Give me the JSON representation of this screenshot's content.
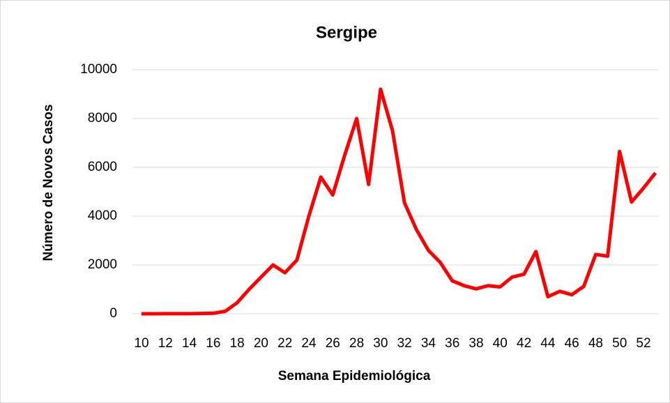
{
  "chart_data": {
    "type": "line",
    "title": "Sergipe",
    "x_label": "Semana Epidemiológica",
    "y_label": "Número de Novos Casos",
    "categories": [
      10,
      null,
      12,
      null,
      14,
      null,
      16,
      null,
      18,
      null,
      20,
      null,
      22,
      null,
      24,
      null,
      26,
      null,
      28,
      null,
      30,
      null,
      32,
      null,
      34,
      null,
      36,
      null,
      38,
      null,
      40,
      null,
      42,
      null,
      44,
      null,
      46,
      null,
      48,
      null,
      50,
      null,
      52,
      null
    ],
    "series": [
      {
        "name": "Sergipe",
        "color": "#ff0000",
        "values": [
          0,
          0,
          5,
          5,
          5,
          10,
          20,
          100,
          450,
          1000,
          1500,
          2000,
          1680,
          2200,
          4000,
          5600,
          4870,
          6500,
          8000,
          5300,
          9200,
          7500,
          4550,
          3450,
          2600,
          2100,
          1350,
          1150,
          1020,
          1150,
          1100,
          1500,
          1620,
          2550,
          700,
          920,
          780,
          1120,
          2430,
          2360,
          6650,
          4580,
          5150,
          5770
        ]
      }
    ],
    "ylim": [
      0,
      10000
    ],
    "yticks": [
      0,
      2000,
      4000,
      6000,
      8000,
      10000
    ],
    "grid": true
  }
}
